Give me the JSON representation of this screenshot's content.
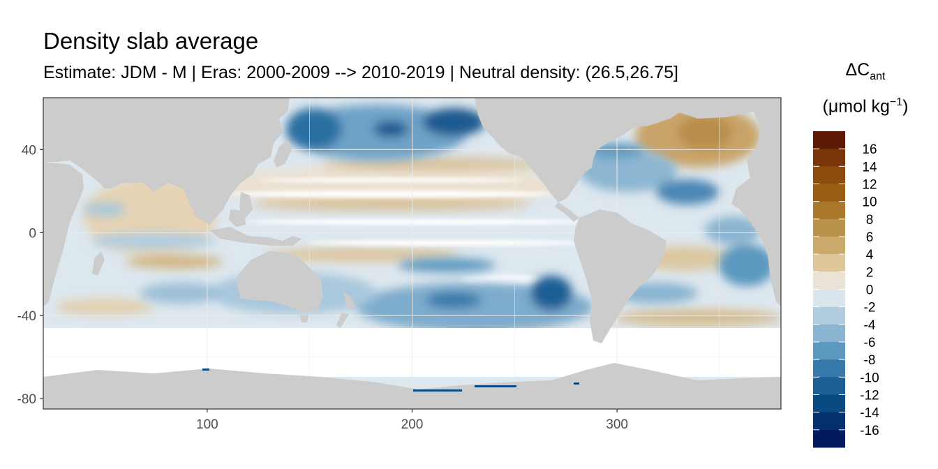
{
  "title": "Density slab average",
  "subtitle": "Estimate: JDM - M | Eras: 2000-2009 --> 2010-2019 | Neutral density: (26.5,26.75]",
  "legend": {
    "symbol": "ΔC",
    "subscript": "ant",
    "unit_open": "(μmol kg",
    "unit_sup": "−1",
    "unit_close": ")"
  },
  "chart_data": {
    "type": "heatmap",
    "title": "Density slab average",
    "subtitle": "Estimate: JDM - M | Eras: 2000-2009 --> 2010-2019 | Neutral density: (26.5,26.75]",
    "xlabel": "",
    "ylabel": "",
    "xlim": [
      20,
      380
    ],
    "ylim": [
      -85,
      65
    ],
    "x_ticks": [
      100,
      200,
      300
    ],
    "y_ticks": [
      40,
      0,
      -40,
      -80
    ],
    "grid": true,
    "legend_position": "right",
    "colorbar": {
      "title": "ΔCant (μmol kg−1)",
      "labels": [
        "16",
        "14",
        "12",
        "10",
        "8",
        "6",
        "4",
        "2",
        "0",
        "-2",
        "-4",
        "-6",
        "-8",
        "-10",
        "-12",
        "-14",
        "-16"
      ],
      "colors": [
        "#5c1a05",
        "#7a3609",
        "#8e4c0c",
        "#9a5e12",
        "#a8772a",
        "#b9924c",
        "#cbaa6e",
        "#ddc79b",
        "#ebe3d5",
        "#d9e4ec",
        "#b3cde0",
        "#8ab4d0",
        "#5c98bf",
        "#3779aa",
        "#1c5f94",
        "#0a4a82",
        "#04316e",
        "#021b5e"
      ]
    },
    "land_color": "#cccccc",
    "panel_background": "#ffffff"
  }
}
